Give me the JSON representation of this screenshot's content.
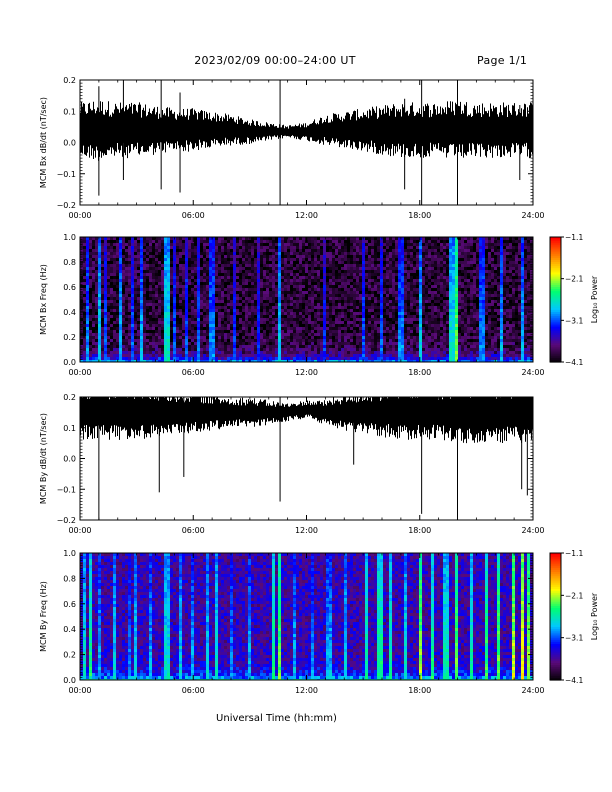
{
  "header": {
    "title": "2023/02/09  00:00–24:00 UT",
    "page": "Page 1/1"
  },
  "xaxis_label": "Universal Time (hh:mm)",
  "time_ticks": [
    "00:00",
    "06:00",
    "12:00",
    "18:00",
    "24:00"
  ],
  "colors": {
    "trace": "#000000",
    "frame": "#000000",
    "colorbar_stops": [
      "#000000",
      "#5a0a78",
      "#0000ff",
      "#00c8ff",
      "#00ff70",
      "#ffff00",
      "#ff8000",
      "#ff0000"
    ]
  },
  "chart_data": [
    {
      "type": "line",
      "panel": "bx-dbdt",
      "ylabel": "MCM Bx dB/dt (nT/sec)",
      "xlabel": "",
      "xlim": [
        0,
        24
      ],
      "ylim": [
        -0.2,
        0.2
      ],
      "yticks": [
        "−0.2",
        "−0.1",
        "0.0",
        "0.1",
        "0.2"
      ],
      "xticks": [
        "00:00",
        "06:00",
        "12:00",
        "18:00",
        "24:00"
      ],
      "series": [
        {
          "hours": [
            0,
            1,
            2,
            3,
            4,
            5,
            6,
            7,
            8,
            9,
            10,
            11,
            12,
            13,
            14,
            15,
            16,
            17,
            18,
            19,
            20,
            21,
            22,
            23,
            24
          ],
          "mean": [
            0.04,
            0.04,
            0.04,
            0.04,
            0.04,
            0.04,
            0.04,
            0.04,
            0.04,
            0.035,
            0.035,
            0.035,
            0.035,
            0.04,
            0.04,
            0.04,
            0.04,
            0.04,
            0.04,
            0.04,
            0.04,
            0.04,
            0.04,
            0.04,
            0.04
          ],
          "half_range": [
            0.09,
            0.1,
            0.09,
            0.09,
            0.08,
            0.07,
            0.07,
            0.06,
            0.05,
            0.04,
            0.03,
            0.02,
            0.03,
            0.05,
            0.06,
            0.07,
            0.08,
            0.09,
            0.09,
            0.09,
            0.1,
            0.09,
            0.09,
            0.09,
            0.09
          ]
        }
      ],
      "spikes": [
        {
          "time": 1.0,
          "low": -0.17,
          "high": 0.18
        },
        {
          "time": 2.3,
          "low": -0.12,
          "high": 0.2
        },
        {
          "time": 4.3,
          "low": -0.15,
          "high": 0.2
        },
        {
          "time": 5.3,
          "low": -0.16,
          "high": 0.16
        },
        {
          "time": 10.6,
          "low": -0.2,
          "high": 0.2
        },
        {
          "time": 17.2,
          "low": -0.15,
          "high": 0.14
        },
        {
          "time": 18.1,
          "low": -0.2,
          "high": 0.2
        },
        {
          "time": 20.0,
          "low": -0.2,
          "high": 0.2
        },
        {
          "time": 23.3,
          "low": -0.12,
          "high": 0.12
        }
      ]
    },
    {
      "type": "heatmap",
      "panel": "bx-spectrogram",
      "ylabel": "MCM Bx Freq (Hz)",
      "xlim": [
        0,
        24
      ],
      "ylim": [
        0,
        1.0
      ],
      "yticks": [
        "0.0",
        "0.2",
        "0.4",
        "0.6",
        "0.8",
        "1.0"
      ],
      "xticks": [
        "00:00",
        "06:00",
        "12:00",
        "18:00",
        "24:00"
      ],
      "colorbar": {
        "label": "Log₁₀ Power",
        "ticks": [
          "−1.1",
          "−2.1",
          "−3.1",
          "−4.1"
        ],
        "range": [
          -4.1,
          -1.1
        ]
      },
      "background_level": -3.9,
      "low_freq_level": -2.9,
      "broadband_events": [
        {
          "time": 0.4,
          "level": -2.9
        },
        {
          "time": 1.0,
          "level": -2.7
        },
        {
          "time": 1.4,
          "level": -3.0
        },
        {
          "time": 2.2,
          "level": -2.8
        },
        {
          "time": 2.8,
          "level": -3.0
        },
        {
          "time": 3.3,
          "level": -2.8
        },
        {
          "time": 4.6,
          "level": -2.6
        },
        {
          "time": 5.0,
          "level": -3.0
        },
        {
          "time": 5.6,
          "level": -3.0
        },
        {
          "time": 6.3,
          "level": -3.0
        },
        {
          "time": 7.0,
          "level": -2.9
        },
        {
          "time": 8.2,
          "level": -3.1
        },
        {
          "time": 9.5,
          "level": -3.1
        },
        {
          "time": 10.6,
          "level": -2.7
        },
        {
          "time": 13.0,
          "level": -3.1
        },
        {
          "time": 15.0,
          "level": -3.0
        },
        {
          "time": 16.0,
          "level": -3.0
        },
        {
          "time": 17.0,
          "level": -2.9
        },
        {
          "time": 18.1,
          "level": -2.7
        },
        {
          "time": 19.7,
          "level": -2.6
        },
        {
          "time": 20.0,
          "level": -2.2
        },
        {
          "time": 21.3,
          "level": -2.9
        },
        {
          "time": 22.4,
          "level": -2.8
        },
        {
          "time": 23.5,
          "level": -2.8
        }
      ]
    },
    {
      "type": "line",
      "panel": "by-dbdt",
      "ylabel": "MCM By dB/dt (nT/sec)",
      "xlabel": "",
      "xlim": [
        0,
        24
      ],
      "ylim": [
        -0.2,
        0.2
      ],
      "yticks": [
        "−0.2",
        "−0.1",
        "0.0",
        "0.1",
        "0.2"
      ],
      "xticks": [
        "00:00",
        "06:00",
        "12:00",
        "18:00",
        "24:00"
      ],
      "series": [
        {
          "hours": [
            0,
            1,
            2,
            3,
            4,
            5,
            6,
            7,
            8,
            9,
            10,
            11,
            12,
            13,
            14,
            15,
            16,
            17,
            18,
            19,
            20,
            21,
            22,
            23,
            24
          ],
          "mean": [
            0.15,
            0.15,
            0.15,
            0.15,
            0.15,
            0.15,
            0.15,
            0.15,
            0.15,
            0.15,
            0.15,
            0.15,
            0.16,
            0.15,
            0.15,
            0.15,
            0.15,
            0.15,
            0.15,
            0.15,
            0.15,
            0.15,
            0.15,
            0.15,
            0.15
          ],
          "half_range": [
            0.09,
            0.09,
            0.09,
            0.09,
            0.08,
            0.07,
            0.07,
            0.06,
            0.05,
            0.05,
            0.04,
            0.03,
            0.03,
            0.04,
            0.06,
            0.07,
            0.08,
            0.09,
            0.09,
            0.09,
            0.1,
            0.1,
            0.1,
            0.1,
            0.1
          ]
        }
      ],
      "spikes": [
        {
          "time": 1.0,
          "low": -0.2,
          "high": 0.2
        },
        {
          "time": 4.2,
          "low": -0.11,
          "high": 0.2
        },
        {
          "time": 5.5,
          "low": -0.06,
          "high": 0.2
        },
        {
          "time": 10.6,
          "low": -0.14,
          "high": 0.2
        },
        {
          "time": 14.5,
          "low": -0.02,
          "high": 0.2
        },
        {
          "time": 18.1,
          "low": -0.18,
          "high": 0.2
        },
        {
          "time": 20.0,
          "low": -0.2,
          "high": 0.2
        },
        {
          "time": 23.4,
          "low": -0.1,
          "high": 0.2
        },
        {
          "time": 23.7,
          "low": -0.12,
          "high": 0.2
        }
      ]
    },
    {
      "type": "heatmap",
      "panel": "by-spectrogram",
      "ylabel": "MCM By Freq (Hz)",
      "xlim": [
        0,
        24
      ],
      "ylim": [
        0,
        1.0
      ],
      "yticks": [
        "0.0",
        "0.2",
        "0.4",
        "0.6",
        "0.8",
        "1.0"
      ],
      "xticks": [
        "00:00",
        "06:00",
        "12:00",
        "18:00",
        "24:00"
      ],
      "colorbar": {
        "label": "Log₁₀ Power",
        "ticks": [
          "−1.1",
          "−2.1",
          "−3.1",
          "−4.1"
        ],
        "range": [
          -4.1,
          -1.1
        ]
      },
      "background_level": -3.5,
      "low_freq_level": -2.6,
      "broadband_events": [
        {
          "time": 0.2,
          "level": -2.6
        },
        {
          "time": 0.5,
          "level": -2.4
        },
        {
          "time": 1.0,
          "level": -2.8
        },
        {
          "time": 1.8,
          "level": -2.7
        },
        {
          "time": 2.6,
          "level": -2.9
        },
        {
          "time": 3.0,
          "level": -2.7
        },
        {
          "time": 3.8,
          "level": -2.8
        },
        {
          "time": 4.6,
          "level": -2.6
        },
        {
          "time": 5.3,
          "level": -2.7
        },
        {
          "time": 6.0,
          "level": -2.8
        },
        {
          "time": 6.7,
          "level": -2.7
        },
        {
          "time": 7.3,
          "level": -2.6
        },
        {
          "time": 8.0,
          "level": -2.9
        },
        {
          "time": 9.0,
          "level": -2.8
        },
        {
          "time": 10.2,
          "level": -2.4
        },
        {
          "time": 10.6,
          "level": -2.2
        },
        {
          "time": 11.3,
          "level": -2.8
        },
        {
          "time": 12.3,
          "level": -2.9
        },
        {
          "time": 13.2,
          "level": -2.8
        },
        {
          "time": 14.1,
          "level": -2.7
        },
        {
          "time": 15.2,
          "level": -2.5
        },
        {
          "time": 15.9,
          "level": -2.4
        },
        {
          "time": 16.5,
          "level": -2.5
        },
        {
          "time": 17.2,
          "level": -2.6
        },
        {
          "time": 18.1,
          "level": -2.1
        },
        {
          "time": 18.7,
          "level": -2.4
        },
        {
          "time": 19.4,
          "level": -2.5
        },
        {
          "time": 20.0,
          "level": -2.2
        },
        {
          "time": 20.8,
          "level": -2.5
        },
        {
          "time": 21.5,
          "level": -2.3
        },
        {
          "time": 22.2,
          "level": -2.2
        },
        {
          "time": 22.9,
          "level": -2.0
        },
        {
          "time": 23.5,
          "level": -1.9
        },
        {
          "time": 23.8,
          "level": -2.1
        }
      ]
    }
  ]
}
